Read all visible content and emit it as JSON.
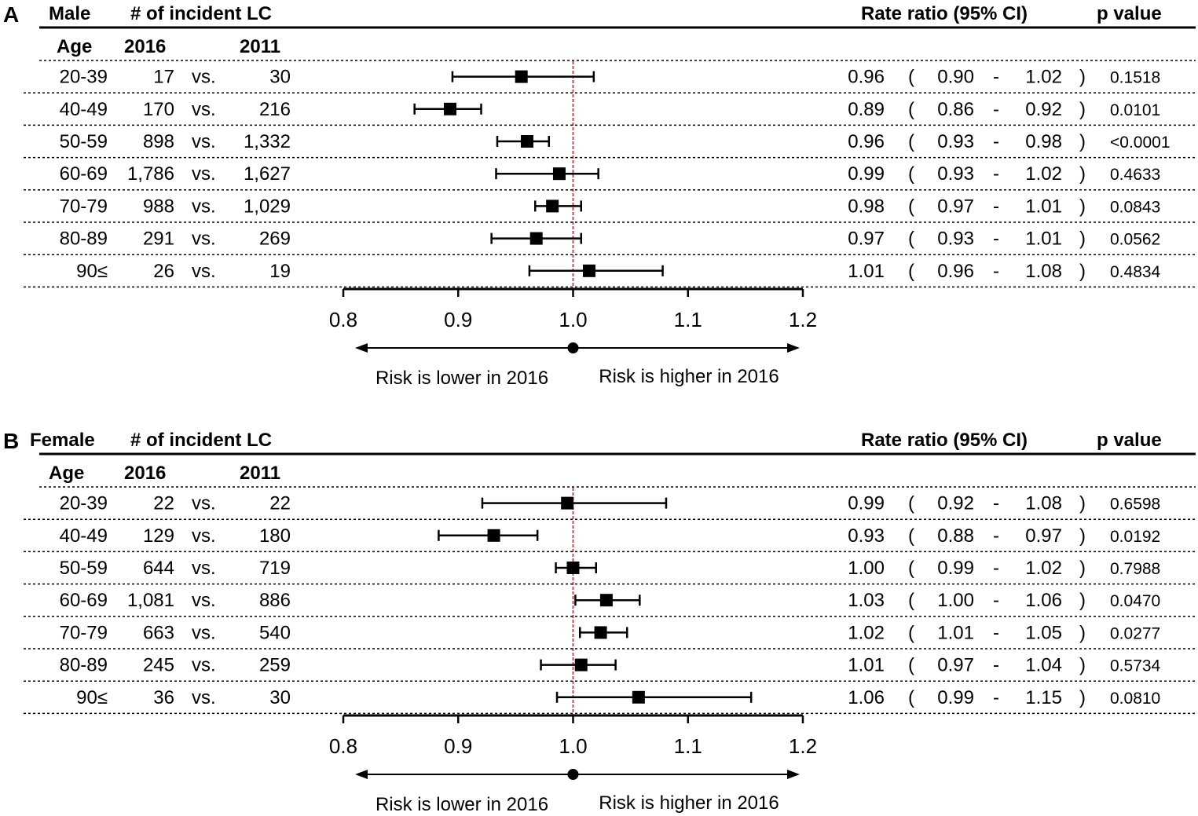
{
  "chart_data": [
    {
      "type": "forest",
      "panel_letter": "A",
      "group_label": "Male",
      "count_header": "# of incident LC",
      "ratio_header": "Rate ratio (95% CI)",
      "p_header": "p value",
      "age_header": "Age",
      "year_a": "2016",
      "year_b": "2011",
      "vs": "vs.",
      "rows": [
        {
          "age": "20-39",
          "n2016": "17",
          "n2011": "30",
          "rr": "0.96",
          "lo": "0.90",
          "hi": "1.02",
          "p": "0.1518",
          "rr_value": 0.955,
          "lo_value": 0.895,
          "hi_value": 1.018
        },
        {
          "age": "40-49",
          "n2016": "170",
          "n2011": "216",
          "rr": "0.89",
          "lo": "0.86",
          "hi": "0.92",
          "p": "0.0101",
          "rr_value": 0.893,
          "lo_value": 0.862,
          "hi_value": 0.92
        },
        {
          "age": "50-59",
          "n2016": "898",
          "n2011": "1,332",
          "rr": "0.96",
          "lo": "0.93",
          "hi": "0.98",
          "p": "<0.0001",
          "rr_value": 0.96,
          "lo_value": 0.934,
          "hi_value": 0.979
        },
        {
          "age": "60-69",
          "n2016": "1,786",
          "n2011": "1,627",
          "rr": "0.99",
          "lo": "0.93",
          "hi": "1.02",
          "p": "0.4633",
          "rr_value": 0.988,
          "lo_value": 0.933,
          "hi_value": 1.022
        },
        {
          "age": "70-79",
          "n2016": "988",
          "n2011": "1,029",
          "rr": "0.98",
          "lo": "0.97",
          "hi": "1.01",
          "p": "0.0843",
          "rr_value": 0.982,
          "lo_value": 0.967,
          "hi_value": 1.007
        },
        {
          "age": "80-89",
          "n2016": "291",
          "n2011": "269",
          "rr": "0.97",
          "lo": "0.93",
          "hi": "1.01",
          "p": "0.0562",
          "rr_value": 0.968,
          "lo_value": 0.929,
          "hi_value": 1.007
        },
        {
          "age": "90≤",
          "n2016": "26",
          "n2011": "19",
          "rr": "1.01",
          "lo": "0.96",
          "hi": "1.08",
          "p": "0.4834",
          "rr_value": 1.014,
          "lo_value": 0.962,
          "hi_value": 1.078
        }
      ],
      "x_ticks": [
        "0.8",
        "0.9",
        "1.0",
        "1.1",
        "1.2"
      ],
      "xlim": [
        0.8,
        1.2
      ],
      "reference_value": 1.0,
      "lower_label": "Risk is lower in 2016",
      "higher_label": "Risk is higher in 2016",
      "marker_color": "#000000",
      "reference_line_color": "#c0504d"
    },
    {
      "type": "forest",
      "panel_letter": "B",
      "group_label": "Female",
      "count_header": "# of incident LC",
      "ratio_header": "Rate ratio (95% CI)",
      "p_header": "p value",
      "age_header": "Age",
      "year_a": "2016",
      "year_b": "2011",
      "vs": "vs.",
      "rows": [
        {
          "age": "20-39",
          "n2016": "22",
          "n2011": "22",
          "rr": "0.99",
          "lo": "0.92",
          "hi": "1.08",
          "p": "0.6598",
          "rr_value": 0.995,
          "lo_value": 0.921,
          "hi_value": 1.081
        },
        {
          "age": "40-49",
          "n2016": "129",
          "n2011": "180",
          "rr": "0.93",
          "lo": "0.88",
          "hi": "0.97",
          "p": "0.0192",
          "rr_value": 0.931,
          "lo_value": 0.883,
          "hi_value": 0.969
        },
        {
          "age": "50-59",
          "n2016": "644",
          "n2011": "719",
          "rr": "1.00",
          "lo": "0.99",
          "hi": "1.02",
          "p": "0.7988",
          "rr_value": 1.0,
          "lo_value": 0.985,
          "hi_value": 1.02
        },
        {
          "age": "60-69",
          "n2016": "1,081",
          "n2011": "886",
          "rr": "1.03",
          "lo": "1.00",
          "hi": "1.06",
          "p": "0.0470",
          "rr_value": 1.029,
          "lo_value": 1.002,
          "hi_value": 1.058
        },
        {
          "age": "70-79",
          "n2016": "663",
          "n2011": "540",
          "rr": "1.02",
          "lo": "1.01",
          "hi": "1.05",
          "p": "0.0277",
          "rr_value": 1.024,
          "lo_value": 1.006,
          "hi_value": 1.047
        },
        {
          "age": "80-89",
          "n2016": "245",
          "n2011": "259",
          "rr": "1.01",
          "lo": "0.97",
          "hi": "1.04",
          "p": "0.5734",
          "rr_value": 1.007,
          "lo_value": 0.972,
          "hi_value": 1.037
        },
        {
          "age": "90≤",
          "n2016": "36",
          "n2011": "30",
          "rr": "1.06",
          "lo": "0.99",
          "hi": "1.15",
          "p": "0.0810",
          "rr_value": 1.057,
          "lo_value": 0.986,
          "hi_value": 1.155
        }
      ],
      "x_ticks": [
        "0.8",
        "0.9",
        "1.0",
        "1.1",
        "1.2"
      ],
      "xlim": [
        0.8,
        1.2
      ],
      "reference_value": 1.0,
      "lower_label": "Risk is lower in 2016",
      "higher_label": "Risk is higher in 2016",
      "marker_color": "#000000",
      "reference_line_color": "#c0504d"
    }
  ]
}
